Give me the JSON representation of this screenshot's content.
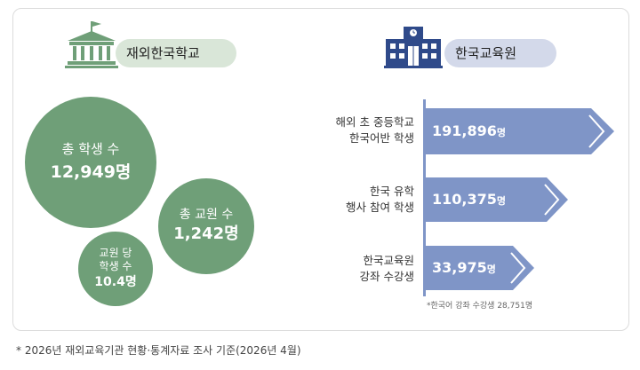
{
  "left": {
    "title": "재외한국학교",
    "stats": [
      {
        "label": "총 학생 수",
        "value": "12,949명"
      },
      {
        "label": "총 교원 수",
        "value": "1,242명"
      },
      {
        "label_line1": "교원 당",
        "label_line2": "학생 수",
        "value": "10.4명"
      }
    ]
  },
  "right": {
    "title": "한국교육원",
    "bars": [
      {
        "label_line1": "해외 초 중등학교",
        "label_line2": "한국어반 학생",
        "value": "191,896",
        "unit": "명"
      },
      {
        "label_line1": "한국 유학",
        "label_line2": "행사 참여 학생",
        "value": "110,375",
        "unit": "명"
      },
      {
        "label_line1": "한국교육원",
        "label_line2": "강좌 수강생",
        "value": "33,975",
        "unit": "명"
      }
    ],
    "note": "*한국어 강좌 수강생 28,751명"
  },
  "footnote": "* 2026년 재외교육기관 현황·통계자료 조사 기준(2026년 4월)",
  "colors": {
    "green": "#6f9f78",
    "green_light": "#d9e6d8",
    "blue": "#7f95c7",
    "navy": "#2f4a8a",
    "blue_light": "#d3d9ea"
  }
}
